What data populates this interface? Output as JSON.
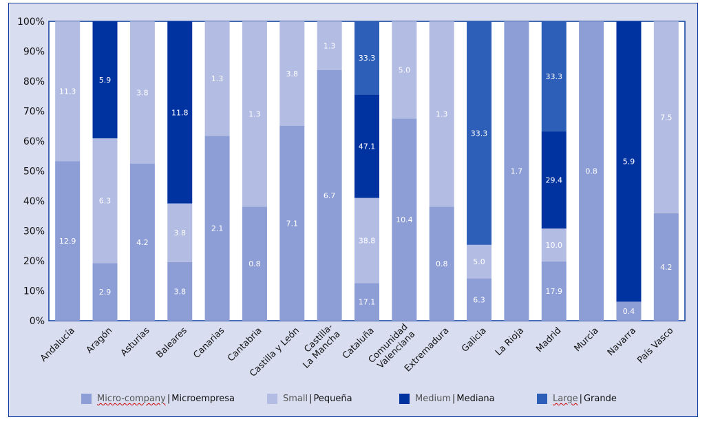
{
  "chart_data": {
    "type": "bar",
    "stacked": true,
    "normalized": true,
    "title": "",
    "xlabel": "",
    "ylabel": "",
    "ylim": [
      0,
      100
    ],
    "y_ticks": [
      "0%",
      "10%",
      "20%",
      "30%",
      "40%",
      "50%",
      "60%",
      "70%",
      "80%",
      "90%",
      "100%"
    ],
    "grid": false,
    "legend_position": "bottom",
    "categories": [
      [
        "Andalucía"
      ],
      [
        "Aragón"
      ],
      [
        "Asturias"
      ],
      [
        "Baleares"
      ],
      [
        "Canarias"
      ],
      [
        "Cantabria"
      ],
      [
        "Castilla y León"
      ],
      [
        "Castilla-",
        "La Mancha"
      ],
      [
        "Cataluña"
      ],
      [
        "Comunidad",
        "Valenciana"
      ],
      [
        "Extremadura"
      ],
      [
        "Galicia"
      ],
      [
        "La Rioja"
      ],
      [
        "Madrid"
      ],
      [
        "Murcia"
      ],
      [
        "Navarra"
      ],
      [
        "País Vasco"
      ]
    ],
    "series": [
      {
        "name": "Micro-company",
        "name_es": "Microempresa",
        "color": "#8d9dd6",
        "spellcheck": true,
        "values": [
          12.9,
          2.9,
          4.2,
          3.8,
          2.1,
          0.8,
          7.1,
          6.7,
          17.1,
          10.4,
          0.8,
          6.3,
          1.7,
          17.9,
          0.8,
          0.4,
          4.2
        ]
      },
      {
        "name": "Small",
        "name_es": "Pequeña",
        "color": "#b3bce3",
        "spellcheck": false,
        "values": [
          11.3,
          6.3,
          3.8,
          3.8,
          1.3,
          1.3,
          3.8,
          1.3,
          38.8,
          5.0,
          1.3,
          5.0,
          null,
          10.0,
          null,
          null,
          7.5
        ]
      },
      {
        "name": "Medium",
        "name_es": "Mediana",
        "color": "#0033a0",
        "spellcheck": false,
        "values": [
          null,
          5.9,
          null,
          11.8,
          null,
          null,
          null,
          null,
          47.1,
          null,
          null,
          null,
          null,
          29.4,
          null,
          5.9,
          null
        ]
      },
      {
        "name": "Large",
        "name_es": "Grande",
        "color": "#2d5fb8",
        "spellcheck": true,
        "values": [
          null,
          null,
          null,
          null,
          null,
          null,
          null,
          null,
          33.3,
          null,
          null,
          33.3,
          null,
          33.3,
          null,
          null,
          null
        ]
      }
    ]
  }
}
